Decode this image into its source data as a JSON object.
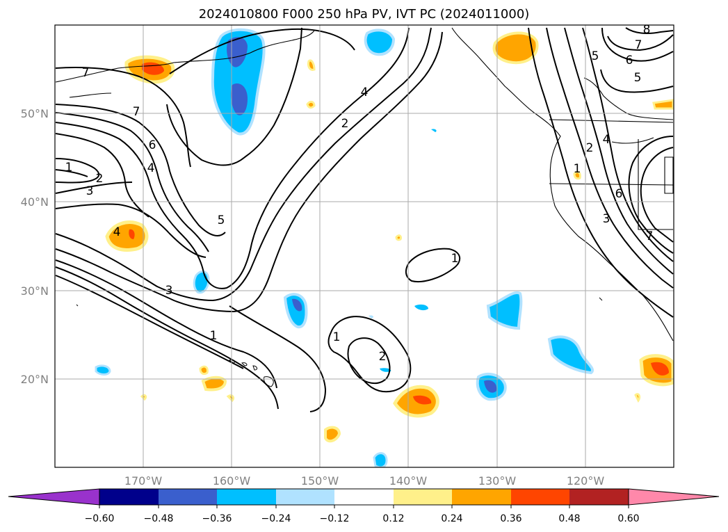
{
  "title": "2024010800 F000 250 hPa PV, IVT PC (2024011000)",
  "map": {
    "lon_range": [
      -180,
      -110
    ],
    "lat_range": [
      10,
      60
    ],
    "lon_ticks": [
      {
        "lon": -170,
        "label": "170°W"
      },
      {
        "lon": -160,
        "label": "160°W"
      },
      {
        "lon": -150,
        "label": "150°W"
      },
      {
        "lon": -140,
        "label": "140°W"
      },
      {
        "lon": -130,
        "label": "130°W"
      },
      {
        "lon": -120,
        "label": "120°W"
      }
    ],
    "lat_ticks": [
      {
        "lat": 50,
        "label": "50°N"
      },
      {
        "lat": 40,
        "label": "40°N"
      },
      {
        "lat": 30,
        "label": "30°N"
      },
      {
        "lat": 20,
        "label": "20°N"
      }
    ],
    "grid": true,
    "coastlines": true,
    "contour_labels": [
      "7",
      "7",
      "6",
      "4",
      "1",
      "2",
      "3",
      "4",
      "5",
      "3",
      "1",
      "4",
      "2",
      "1",
      "2",
      "1",
      "5",
      "8",
      "7",
      "6",
      "5",
      "4",
      "2",
      "1",
      "6",
      "3",
      "7"
    ]
  },
  "colorbar": {
    "extend": "both",
    "segment_colors": [
      "#9932cc",
      "#00008b",
      "#3a5fcd",
      "#00bfff",
      "#b0e2ff",
      "#ffffff",
      "#fff08a",
      "#ffa500",
      "#ff4500",
      "#b22222",
      "#ff88aa"
    ],
    "tick_labels": [
      "−0.60",
      "−0.48",
      "−0.36",
      "−0.24",
      "−0.12",
      "0.12",
      "0.24",
      "0.36",
      "0.48",
      "0.60"
    ]
  },
  "colors": {
    "negative_strong": "#3a5fcd",
    "negative": "#00bfff",
    "negative_weak": "#b0e2ff",
    "positive_weak": "#fff08a",
    "positive": "#ffa500",
    "positive_strong": "#ff4500",
    "contour": "#000000",
    "grid": "#aaaaaa"
  }
}
